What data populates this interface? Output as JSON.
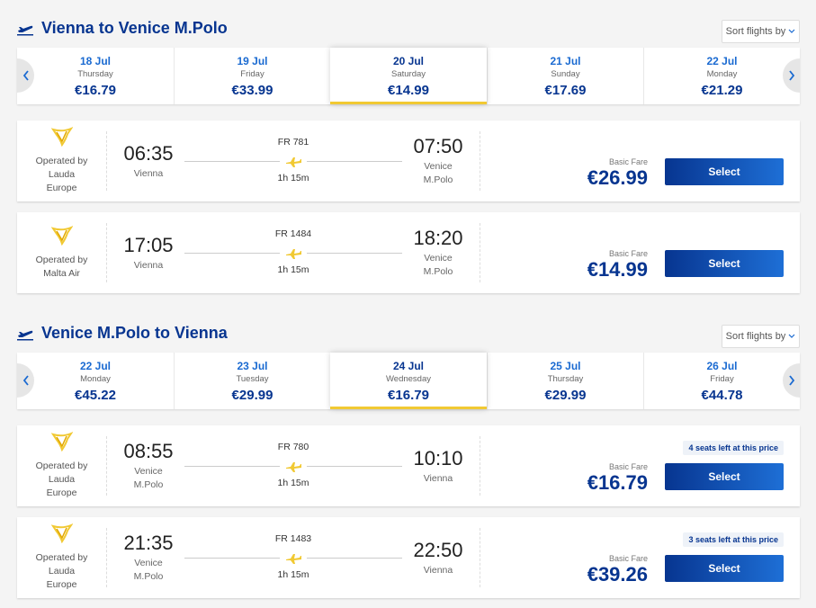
{
  "sections": [
    {
      "title": "Vienna to Venice M.Polo",
      "sort_label": "Sort flights by",
      "dates": [
        {
          "date": "18 Jul",
          "weekday": "Thursday",
          "price": "€16.79"
        },
        {
          "date": "19 Jul",
          "weekday": "Friday",
          "price": "€33.99"
        },
        {
          "date": "20 Jul",
          "weekday": "Saturday",
          "price": "€14.99"
        },
        {
          "date": "21 Jul",
          "weekday": "Sunday",
          "price": "€17.69"
        },
        {
          "date": "22 Jul",
          "weekday": "Monday",
          "price": "€21.29"
        }
      ],
      "flights": [
        {
          "operator": "Operated by Lauda Europe",
          "departure_time": "06:35",
          "departure_airport": "Vienna",
          "flight_number": "FR 781",
          "duration": "1h 15m",
          "arrival_time": "07:50",
          "arrival_airport": "Venice M.Polo",
          "fare_type": "Basic Fare",
          "price": "€26.99",
          "button": "Select"
        },
        {
          "operator": "Operated by Malta Air",
          "departure_time": "17:05",
          "departure_airport": "Vienna",
          "flight_number": "FR 1484",
          "duration": "1h 15m",
          "arrival_time": "18:20",
          "arrival_airport": "Venice M.Polo",
          "fare_type": "Basic Fare",
          "price": "€14.99",
          "button": "Select"
        }
      ]
    },
    {
      "title": "Venice M.Polo to Vienna",
      "sort_label": "Sort flights by",
      "dates": [
        {
          "date": "22 Jul",
          "weekday": "Monday",
          "price": "€45.22"
        },
        {
          "date": "23 Jul",
          "weekday": "Tuesday",
          "price": "€29.99"
        },
        {
          "date": "24 Jul",
          "weekday": "Wednesday",
          "price": "€16.79"
        },
        {
          "date": "25 Jul",
          "weekday": "Thursday",
          "price": "€29.99"
        },
        {
          "date": "26 Jul",
          "weekday": "Friday",
          "price": "€44.78"
        }
      ],
      "flights": [
        {
          "operator": "Operated by Lauda Europe",
          "departure_time": "08:55",
          "departure_airport": "Venice M.Polo",
          "flight_number": "FR 780",
          "duration": "1h 15m",
          "arrival_time": "10:10",
          "arrival_airport": "Vienna",
          "fare_type": "Basic Fare",
          "price": "€16.79",
          "button": "Select",
          "seats_notice": "4 seats left at this price"
        },
        {
          "operator": "Operated by Lauda Europe",
          "departure_time": "21:35",
          "departure_airport": "Venice M.Polo",
          "flight_number": "FR 1483",
          "duration": "1h 15m",
          "arrival_time": "22:50",
          "arrival_airport": "Vienna",
          "fare_type": "Basic Fare",
          "price": "€39.26",
          "button": "Select",
          "seats_notice": "3 seats left at this price"
        }
      ]
    }
  ]
}
